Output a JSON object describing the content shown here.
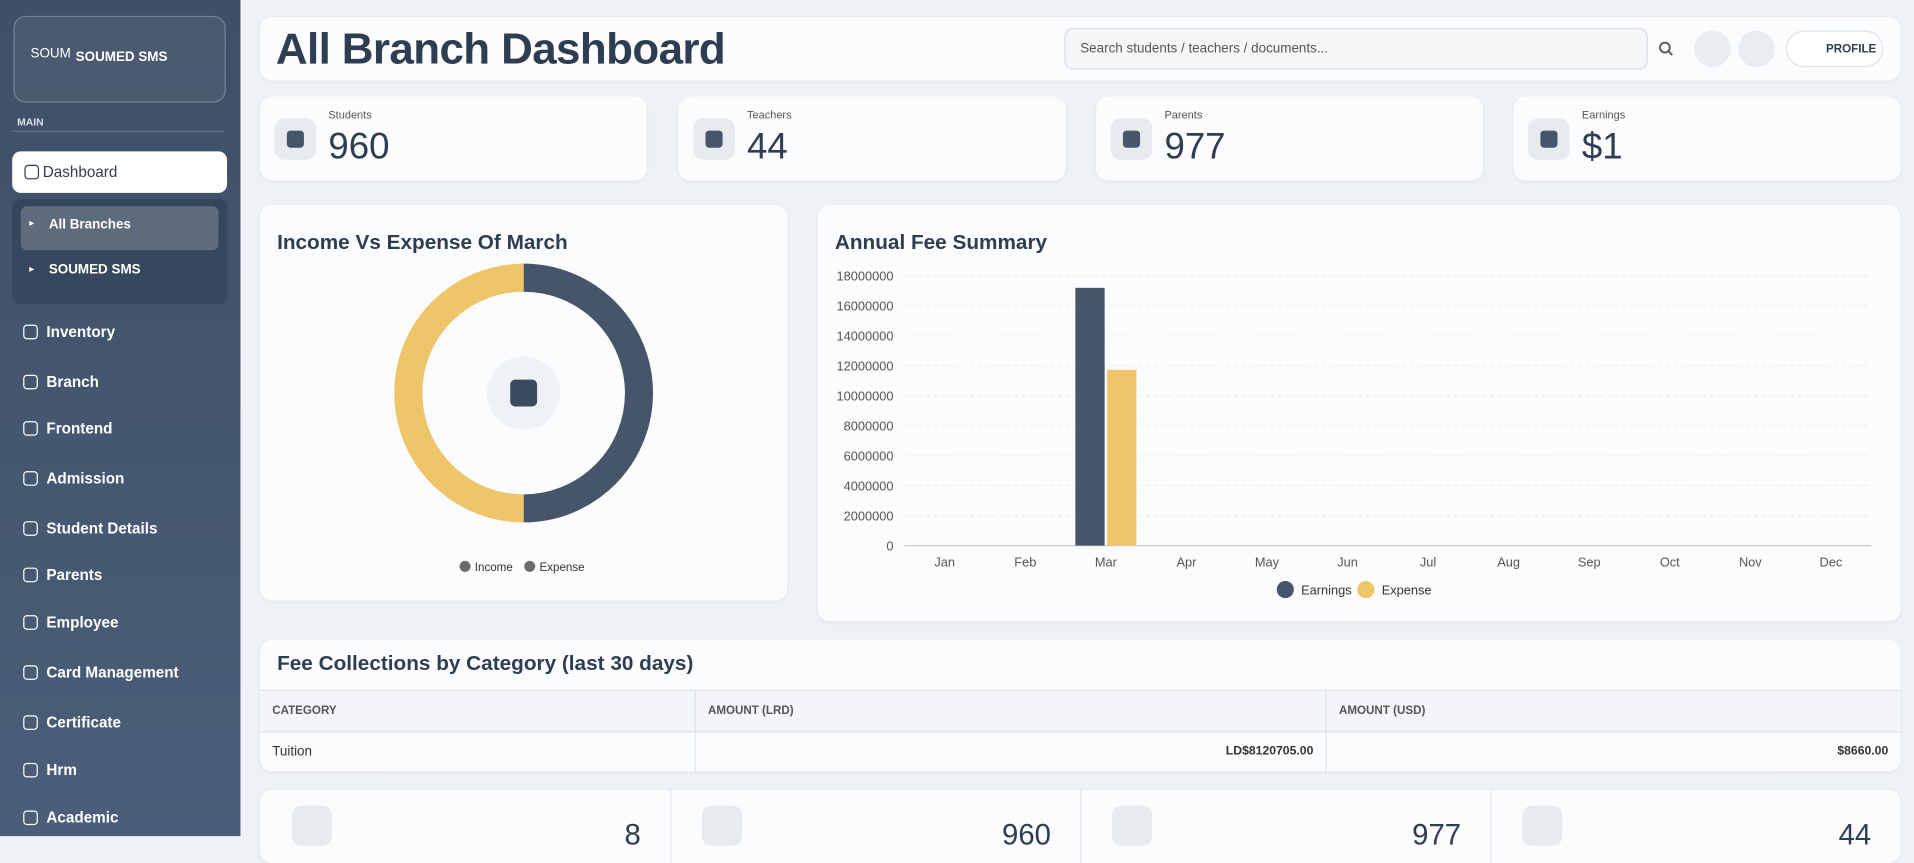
{
  "sidebar": {
    "brand": "SOUMED SMS",
    "logo_alt": "SOUM",
    "section": "MAIN",
    "active": "Dashboard",
    "submenu": [
      "All Branches",
      "SOUMED SMS"
    ],
    "items": [
      "Inventory",
      "Branch",
      "Frontend",
      "Admission",
      "Student Details",
      "Parents",
      "Employee",
      "Card Management",
      "Certificate",
      "Hrm",
      "Academic"
    ]
  },
  "header": {
    "title": "All Branch Dashboard",
    "search_placeholder": "Search students / teachers / documents...",
    "profile": "PROFILE"
  },
  "stats": [
    {
      "label": "Students",
      "value": 960
    },
    {
      "label": "Teachers",
      "value": 44
    },
    {
      "label": "Parents",
      "value": 977
    },
    {
      "label": "Earnings",
      "value": "$1"
    }
  ],
  "income_expense_chart": {
    "type": "pie",
    "title": "Income Vs Expense Of March",
    "categories": [
      "Income",
      "Expense"
    ],
    "values": [
      50,
      50
    ],
    "colors": [
      "#465569",
      "#efc56a"
    ],
    "legend_color": "#6b6b6b"
  },
  "fee_chart": {
    "type": "bar",
    "title": "Annual Fee Summary",
    "categories": [
      "Jan",
      "Feb",
      "Mar",
      "Apr",
      "May",
      "Jun",
      "Jul",
      "Aug",
      "Sep",
      "Oct",
      "Nov",
      "Dec"
    ],
    "series": [
      {
        "name": "Earnings",
        "color": "#465569",
        "values": [
          0,
          0,
          17200000,
          0,
          0,
          0,
          0,
          0,
          0,
          0,
          0,
          0
        ]
      },
      {
        "name": "Expense",
        "color": "#efc56a",
        "values": [
          0,
          0,
          11730000,
          0,
          0,
          0,
          0,
          0,
          0,
          0,
          0,
          0
        ]
      }
    ],
    "ylim": [
      0,
      18000000
    ],
    "yticks": [
      0,
      2000000,
      4000000,
      6000000,
      8000000,
      10000000,
      12000000,
      14000000,
      16000000,
      18000000
    ],
    "grid": true,
    "legend": "bottom"
  },
  "fee_table": {
    "title": "Fee Collections by Category (last 30 days)",
    "columns": [
      "CATEGORY",
      "AMOUNT (LRD)",
      "AMOUNT (USD)"
    ],
    "rows": [
      [
        "Tuition",
        "LD$8120705.00",
        "$8660.00"
      ]
    ]
  },
  "summary": [
    8,
    960,
    977,
    44
  ]
}
